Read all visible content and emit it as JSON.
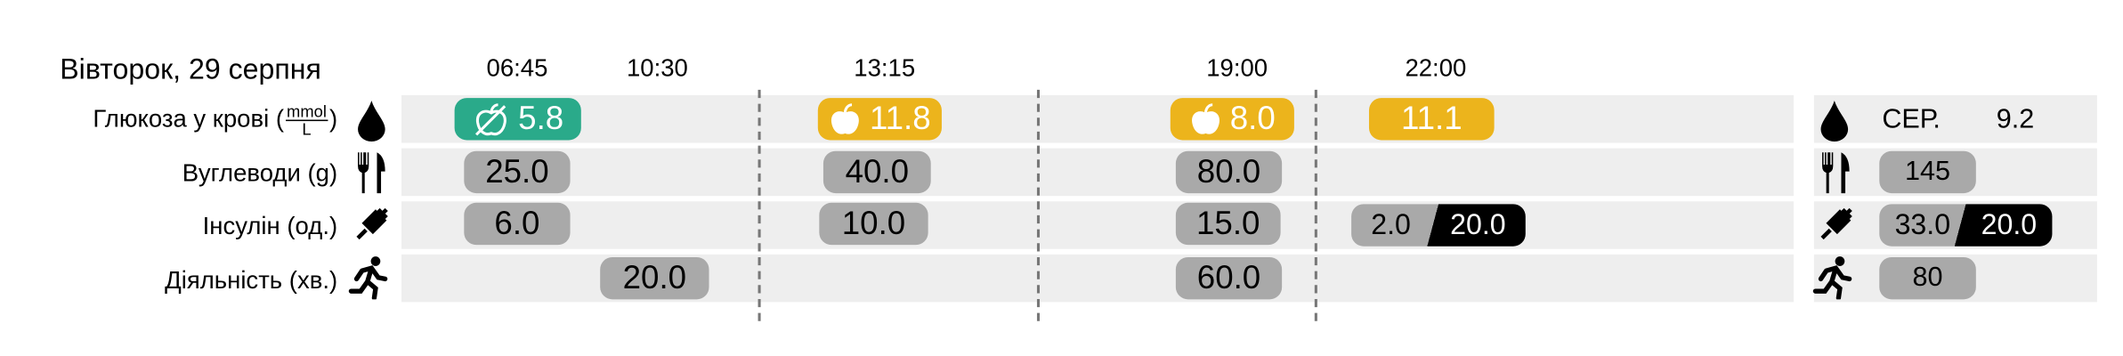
{
  "header": {
    "date": "Вівторок, 29 серпня"
  },
  "times": [
    "06:45",
    "10:30",
    "13:15",
    "19:00",
    "22:00"
  ],
  "rows": {
    "glucose": {
      "label": "Глюкоза у крові (",
      "unit_num": "mmol",
      "unit_den": "L",
      "label_end": ")",
      "values": [
        "5.8",
        "11.8",
        "8.0",
        "11.1"
      ]
    },
    "carbs": {
      "label": "Вуглеводи (g)",
      "values": [
        "25.0",
        "40.0",
        "80.0"
      ]
    },
    "insulin": {
      "label": "Інсулін (од.)",
      "values": [
        "6.0",
        "10.0",
        "15.0"
      ],
      "split": [
        "2.0",
        "20.0"
      ]
    },
    "activity": {
      "label": "Діяльність (хв.)",
      "values": [
        "20.0",
        "60.0"
      ]
    }
  },
  "summary": {
    "avg_label": "СЕР.",
    "glucose": "9.2",
    "carbs": "145",
    "insulin": [
      "33.0",
      "20.0"
    ],
    "activity": "80"
  }
}
